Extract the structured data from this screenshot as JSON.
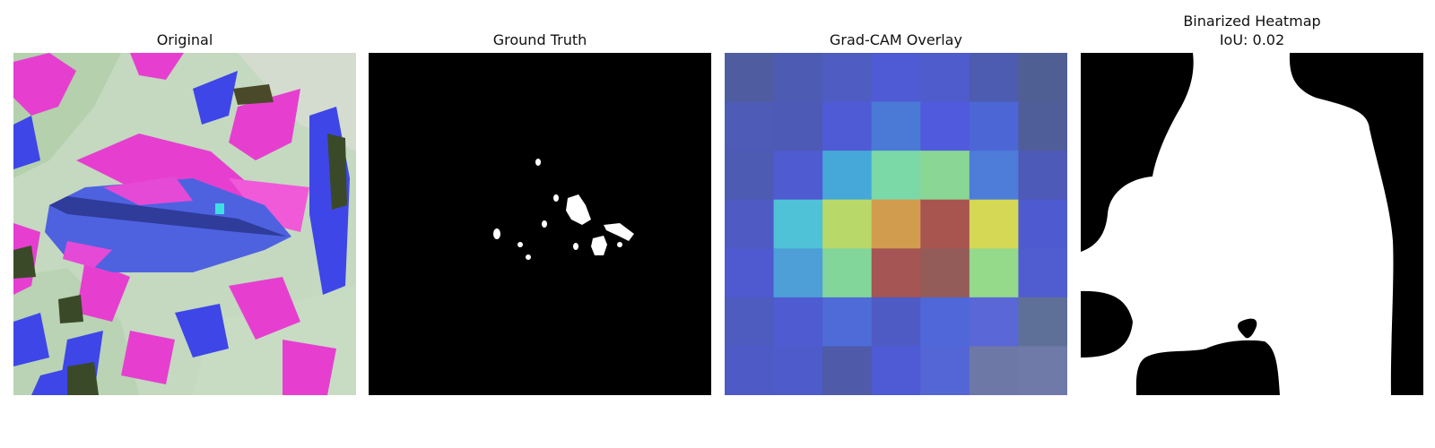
{
  "panels": {
    "original": {
      "title": "Original"
    },
    "ground_truth": {
      "title": "Ground Truth"
    },
    "gradcam": {
      "title": "Grad-CAM Overlay",
      "grid": [
        [
          "#4f5da0",
          "#4e5bb3",
          "#4f5dc2",
          "#4f5bd5",
          "#4f5ccc",
          "#4d5bb0",
          "#4f5f93"
        ],
        [
          "#4e5bb7",
          "#4e5bb6",
          "#4f5bd5",
          "#4a7ad6",
          "#4f5bdc",
          "#4d66d6",
          "#4f5e98"
        ],
        [
          "#4e5bb2",
          "#4f5bd0",
          "#46a8d8",
          "#7bd8a7",
          "#8ad695",
          "#4e7cd9",
          "#4e5ab8"
        ],
        [
          "#4f5bc2",
          "#4fc2d8",
          "#b8d86a",
          "#d29c4f",
          "#a85550",
          "#d4d855",
          "#4e5bd0"
        ],
        [
          "#4f5ad0",
          "#4e9fd8",
          "#83d69a",
          "#a55553",
          "#935c58",
          "#95d98b",
          "#4f5dd0"
        ],
        [
          "#4e5bbf",
          "#4f5bd1",
          "#4e6bd8",
          "#4f5bc5",
          "#4f67d8",
          "#5a67d6",
          "#5f7098"
        ],
        [
          "#4e5bc7",
          "#4e5bca",
          "#4f5aa8",
          "#4f5bd5",
          "#5466d6",
          "#6e78a6",
          "#6f7aa8"
        ]
      ]
    },
    "binarized": {
      "title": "Binarized Heatmap",
      "iou": "IoU: 0.02"
    }
  }
}
